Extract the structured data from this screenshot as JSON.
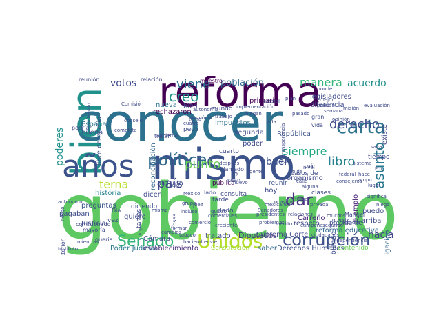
{
  "words": [
    {
      "text": "gobierno",
      "color": "#5ec962"
    },
    {
      "text": "conocer",
      "color": "#2c718e"
    },
    {
      "text": "mismo",
      "color": "#3b528b"
    },
    {
      "text": "reforma",
      "color": "#440154"
    },
    {
      "text": "bien",
      "color": "#21918c"
    },
    {
      "text": "años",
      "color": "#3b528b"
    },
    {
      "text": "corrupción",
      "color": "#3b528b"
    },
    {
      "text": "Unidos",
      "color": "#b5de2b"
    },
    {
      "text": "Senado",
      "color": "#35b779"
    },
    {
      "text": "política",
      "color": "#31688e"
    },
    {
      "text": "carta",
      "color": "#2c718e"
    },
    {
      "text": "derecho",
      "color": "#3e4989"
    },
    {
      "text": "asunto",
      "color": "#2a788e"
    },
    {
      "text": "viene",
      "color": "#2c728e"
    },
    {
      "text": "creo",
      "color": "#21918c"
    },
    {
      "text": "país",
      "color": "#3e4a89"
    },
    {
      "text": "punto",
      "color": "#6ece58"
    },
    {
      "text": "terna",
      "color": "#b5de2b"
    },
    {
      "text": "dar",
      "color": "#46327e"
    },
    {
      "text": "libro",
      "color": "#26828e"
    },
    {
      "text": "siempre",
      "color": "#22a884"
    },
    {
      "text": "manera",
      "color": "#35b779"
    },
    {
      "text": "acuerdo",
      "color": "#21918c"
    },
    {
      "text": "poderes",
      "color": "#21918c"
    },
    {
      "text": "votos",
      "color": "#3e4a89"
    },
    {
      "text": "buen",
      "color": "#3b528b"
    },
    {
      "text": "población",
      "color": "#31688e"
    },
    {
      "text": "hacía",
      "color": "#414487"
    },
    {
      "text": "Diputados",
      "color": "#46327e"
    },
    {
      "text": "reforma educativa",
      "color": "#31688e"
    },
    {
      "text": "Derechos Humanos",
      "color": "#3b528b"
    },
    {
      "text": "Poder Judicial",
      "color": "#2a788e"
    },
    {
      "text": "establecimiento",
      "color": "#472d7b"
    },
    {
      "text": "Constitución",
      "color": "#a0da39"
    },
    {
      "text": "contenido",
      "color": "#6ece58"
    },
    {
      "text": "historia",
      "color": "#26828e"
    },
    {
      "text": "preguntas",
      "color": "#3b528b"
    },
    {
      "text": "pagaban",
      "color": "#3e4989"
    },
    {
      "text": "artículo",
      "color": "#3b528b"
    },
    {
      "text": "Cámara",
      "color": "#3e4989"
    },
    {
      "text": "tratado",
      "color": "#3e4989"
    },
    {
      "text": "República",
      "color": "#3b528b"
    },
    {
      "text": "organismo",
      "color": "#3e4989"
    },
    {
      "text": "legisladores",
      "color": "#3e4989"
    },
    {
      "text": "diferencia",
      "color": "#3e4989"
    },
    {
      "text": "reunir",
      "color": "#3b528b"
    },
    {
      "text": "ejemplo",
      "color": "#482374"
    },
    {
      "text": "respeto",
      "color": "#414487"
    },
    {
      "text": "Carreño",
      "color": "#482878"
    },
    {
      "text": "España",
      "color": "#2c728e"
    },
    {
      "text": "buena",
      "color": "#3b528b"
    },
    {
      "text": "Justicia",
      "color": "#3e4989"
    },
    {
      "text": "nueva",
      "color": "#2c728e"
    },
    {
      "text": "hizo",
      "color": "#3e4989"
    },
    {
      "text": "impuestos",
      "color": "#2c728e"
    },
    {
      "text": "segunda",
      "color": "#3e4989"
    },
    {
      "text": "poder",
      "color": "#3e4989"
    },
    {
      "text": "primaria",
      "color": "#440154"
    },
    {
      "text": "rechazaron",
      "color": "#440154"
    },
    {
      "text": "libre comercio",
      "color": "#3e4989"
    },
    {
      "text": "investigación",
      "color": "#31688e"
    },
    {
      "text": "reconciliación",
      "color": "#31688e"
    },
    {
      "text": "Suprema Corte",
      "color": "#3e4989"
    },
    {
      "text": "saber",
      "color": "#31688e"
    },
    {
      "text": "pública",
      "color": "#440154"
    },
    {
      "text": "cuarto",
      "color": "#3e4989"
    },
    {
      "text": "maestro",
      "color": "#440154"
    },
    {
      "text": "relación",
      "color": "#3e4989"
    },
    {
      "text": "reunión",
      "color": "#3e4989"
    },
    {
      "text": "puedo",
      "color": "#3e4989"
    },
    {
      "text": "arriba",
      "color": "#3e4989"
    },
    {
      "text": "hablando",
      "color": "#3e4989"
    },
    {
      "text": "hoy",
      "color": "#3e4989"
    },
    {
      "text": "quiero",
      "color": "#3e4989"
    },
    {
      "text": "dicen",
      "color": "#3e4989"
    },
    {
      "text": "tarde",
      "color": "#3e4989"
    },
    {
      "text": "consulta",
      "color": "#3e4989"
    },
    {
      "text": "dado",
      "color": "#3e4989"
    },
    {
      "text": "existe",
      "color": "#3e4989"
    },
    {
      "text": "mundo",
      "color": "#3e4989"
    },
    {
      "text": "pedir",
      "color": "#3e4989"
    },
    {
      "text": "vez",
      "color": "#3e4989"
    },
    {
      "text": "temas",
      "color": "#3e4989"
    },
    {
      "text": "diciendo",
      "color": "#3e4989"
    },
    {
      "text": "tiempo",
      "color": "#3e4989"
    },
    {
      "text": "casos de",
      "color": "#3e4989"
    },
    {
      "text": "clases",
      "color": "#3e4989"
    },
    {
      "text": "presidente",
      "color": "#3e4989"
    },
    {
      "text": "Manuel",
      "color": "#3e4989"
    },
    {
      "text": "llamado",
      "color": "#3e4989"
    },
    {
      "text": "sean",
      "color": "#3e4989"
    },
    {
      "text": "vida",
      "color": "#3e4989"
    },
    {
      "text": "gran",
      "color": "#3e4989"
    },
    {
      "text": "tratar",
      "color": "#3e4989"
    },
    {
      "text": "podrían",
      "color": "#3e4989"
    },
    {
      "text": "lado",
      "color": "#3e4989"
    },
    {
      "text": "política exterior",
      "color": "#3e4989"
    },
    {
      "text": "comisionado",
      "color": "#3e4989"
    },
    {
      "text": "mayoría",
      "color": "#3e4989"
    },
    {
      "text": "quería",
      "color": "#3e4989"
    },
    {
      "text": "Día",
      "color": "#3e4989"
    },
    {
      "text": "Instituto",
      "color": "#3e4989"
    },
    {
      "text": "mientras",
      "color": "#3e4989"
    },
    {
      "text": "cambios",
      "color": "#3e4989"
    },
    {
      "text": "comercio",
      "color": "#3e4989"
    },
    {
      "text": "incluso",
      "color": "#3e4989"
    },
    {
      "text": "misma",
      "color": "#3e4989"
    },
    {
      "text": "completa",
      "color": "#3e4989"
    },
    {
      "text": "cosas",
      "color": "#3e4989"
    },
    {
      "text": "nuevo",
      "color": "#3e4989"
    },
    {
      "text": "grupo",
      "color": "#3e4989"
    },
    {
      "text": "muchos",
      "color": "#3e4989"
    },
    {
      "text": "segundo",
      "color": "#3e4989"
    },
    {
      "text": "grande",
      "color": "#3e4989"
    },
    {
      "text": "pide",
      "color": "#3e4989"
    },
    {
      "text": "nivel",
      "color": "#3e4989"
    },
    {
      "text": "tema",
      "color": "#3e4989"
    },
    {
      "text": "después",
      "color": "#3e4989"
    },
    {
      "text": "ley",
      "color": "#3e4989"
    },
    {
      "text": "casa",
      "color": "#3e4989"
    },
    {
      "text": "campo",
      "color": "#3e4989"
    },
    {
      "text": "lugar",
      "color": "#3e4989"
    },
    {
      "text": "Fox",
      "color": "#3e4989"
    },
    {
      "text": "cuál",
      "color": "#3e4989"
    },
    {
      "text": "hace",
      "color": "#3e4989"
    },
    {
      "text": "calle",
      "color": "#3e4989"
    },
    {
      "text": "alguna",
      "color": "#3e4989"
    },
    {
      "text": "saya",
      "color": "#3e4989"
    },
    {
      "text": "niega",
      "color": "#3e4989"
    },
    {
      "text": "significa",
      "color": "#3e4989"
    },
    {
      "text": "contenido",
      "color": "#3e4989"
    },
    {
      "text": "Comisión",
      "color": "#3e4989"
    },
    {
      "text": "trabajo",
      "color": "#3e4989"
    },
    {
      "text": "autonomía",
      "color": "#3e4989"
    },
    {
      "text": "solo",
      "color": "#3e4989"
    },
    {
      "text": "quizás",
      "color": "#3e4989"
    },
    {
      "text": "presión",
      "color": "#3e4989"
    },
    {
      "text": "monde",
      "color": "#3e4989"
    },
    {
      "text": "mejor",
      "color": "#3e4989"
    },
    {
      "text": "tabaco",
      "color": "#3e4989"
    },
    {
      "text": "envié",
      "color": "#3e4989"
    },
    {
      "text": "juez",
      "color": "#3e4989"
    },
    {
      "text": "México",
      "color": "#3e4989"
    },
    {
      "text": "transparencia",
      "color": "#3e4989"
    },
    {
      "text": "campaña",
      "color": "#3e4989"
    },
    {
      "text": "formar",
      "color": "#3e4989"
    },
    {
      "text": "haciendo",
      "color": "#3e4989"
    },
    {
      "text": "mexicanos",
      "color": "#3e4989"
    },
    {
      "text": "creciente",
      "color": "#3e4989"
    },
    {
      "text": "económico",
      "color": "#3e4989"
    },
    {
      "text": "Gobierno",
      "color": "#3e4989"
    },
    {
      "text": "cuatro",
      "color": "#3e4989"
    },
    {
      "text": "comerciales",
      "color": "#3e4989"
    },
    {
      "text": "problemas",
      "color": "#3e4989"
    },
    {
      "text": "gente",
      "color": "#3e4989"
    },
    {
      "text": "relaciones",
      "color": "#3e4989"
    },
    {
      "text": "Senadores",
      "color": "#3e4989"
    },
    {
      "text": "ciudadanos",
      "color": "#3e4989"
    },
    {
      "text": "independencia",
      "color": "#3e4989"
    },
    {
      "text": "vida",
      "color": "#3e4989"
    },
    {
      "text": "inédito",
      "color": "#3e4989"
    },
    {
      "text": "semana",
      "color": "#3e4989"
    },
    {
      "text": "implementación",
      "color": "#3e4989"
    },
    {
      "text": "compromiso",
      "color": "#3e4989"
    },
    {
      "text": "autonomo",
      "color": "#3e4989"
    },
    {
      "text": "niegan",
      "color": "#3e4989"
    },
    {
      "text": "consejeros",
      "color": "#3e4989"
    },
    {
      "text": "riesgo",
      "color": "#3e4989"
    },
    {
      "text": "consejo",
      "color": "#3e4989"
    },
    {
      "text": "estatal",
      "color": "#3e4989"
    },
    {
      "text": "pasado",
      "color": "#3e4989"
    },
    {
      "text": "misión",
      "color": "#3e4989"
    },
    {
      "text": "plan",
      "color": "#3e4989"
    },
    {
      "text": "federal",
      "color": "#3e4989"
    },
    {
      "text": "presidentes",
      "color": "#3e4989"
    },
    {
      "text": "estados",
      "color": "#3e4989"
    },
    {
      "text": "opinión",
      "color": "#3e4989"
    },
    {
      "text": "fuera",
      "color": "#3e4989"
    },
    {
      "text": "sistema",
      "color": "#3e4989"
    },
    {
      "text": "evaluación",
      "color": "#3e4989"
    },
    {
      "text": "privada",
      "color": "#3e4989"
    },
    {
      "text": "ocasión",
      "color": "#3e4989"
    }
  ]
}
